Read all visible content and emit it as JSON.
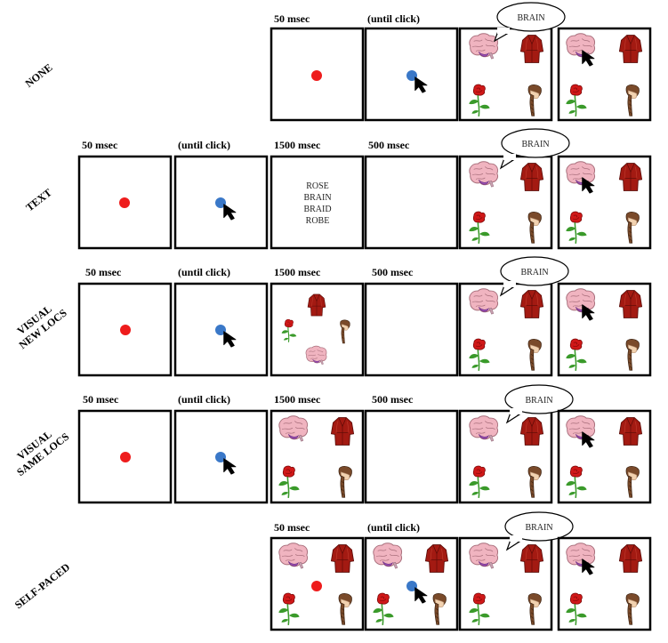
{
  "rows": [
    {
      "label": [
        "NONE"
      ],
      "panels": [
        {
          "col": 2,
          "timing": "50 msec",
          "type": "fixation"
        },
        {
          "col": 3,
          "timing": "(until click)",
          "type": "click"
        },
        {
          "col": 4,
          "timing": "",
          "type": "display",
          "bubble": "BRAIN"
        },
        {
          "col": 5,
          "timing": "",
          "type": "response"
        }
      ]
    },
    {
      "label": [
        "TEXT"
      ],
      "panels": [
        {
          "col": 0,
          "timing": "50 msec",
          "type": "fixation"
        },
        {
          "col": 1,
          "timing": "(until click)",
          "type": "click"
        },
        {
          "col": 2,
          "timing": "1500 msec",
          "type": "words",
          "words": [
            "ROSE",
            "BRAIN",
            "BRAID",
            "ROBE"
          ]
        },
        {
          "col": 3,
          "timing": "500 msec",
          "type": "blank"
        },
        {
          "col": 4,
          "timing": "",
          "type": "display",
          "bubble": "BRAIN"
        },
        {
          "col": 5,
          "timing": "",
          "type": "response"
        }
      ]
    },
    {
      "label": [
        "VISUAL",
        "NEW LOCS"
      ],
      "panels": [
        {
          "col": 0,
          "timing": "50 msec",
          "type": "fixation"
        },
        {
          "col": 1,
          "timing": "(until click)",
          "type": "click"
        },
        {
          "col": 2,
          "timing": "1500 msec",
          "type": "scattered"
        },
        {
          "col": 3,
          "timing": "500 msec",
          "type": "blank"
        },
        {
          "col": 4,
          "timing": "",
          "type": "display",
          "bubble": "BRAIN"
        },
        {
          "col": 5,
          "timing": "",
          "type": "response"
        }
      ]
    },
    {
      "label": [
        "VISUAL",
        "SAME LOCS"
      ],
      "panels": [
        {
          "col": 0,
          "timing": "50 msec",
          "type": "fixation"
        },
        {
          "col": 1,
          "timing": "(until click)",
          "type": "click"
        },
        {
          "col": 2,
          "timing": "1500 msec",
          "type": "preview"
        },
        {
          "col": 3,
          "timing": "500 msec",
          "type": "blank"
        },
        {
          "col": 4,
          "timing": "",
          "type": "display",
          "bubble": "BRAIN"
        },
        {
          "col": 5,
          "timing": "",
          "type": "response"
        }
      ]
    },
    {
      "label": [
        "SELF-PACED"
      ],
      "panels": [
        {
          "col": 2,
          "timing": "50 msec",
          "type": "preview-fixation"
        },
        {
          "col": 3,
          "timing": "(until click)",
          "type": "preview-click"
        },
        {
          "col": 4,
          "timing": "",
          "type": "display",
          "bubble": "BRAIN"
        },
        {
          "col": 5,
          "timing": "",
          "type": "response"
        }
      ]
    }
  ],
  "colors": {
    "fixation_dot": "#ee1c1c",
    "click_dot": "#3a78c8",
    "robe": "#a31a12",
    "brain": "#f0b4c0",
    "brain_stem": "#9b4fb3",
    "rose": "#d01818",
    "stem": "#3a9a2a",
    "hair": "#7a4a2a",
    "skin": "#f2d2b0"
  },
  "icons": [
    "brain-icon",
    "robe-icon",
    "rose-icon",
    "braid-icon",
    "cursor-icon"
  ]
}
